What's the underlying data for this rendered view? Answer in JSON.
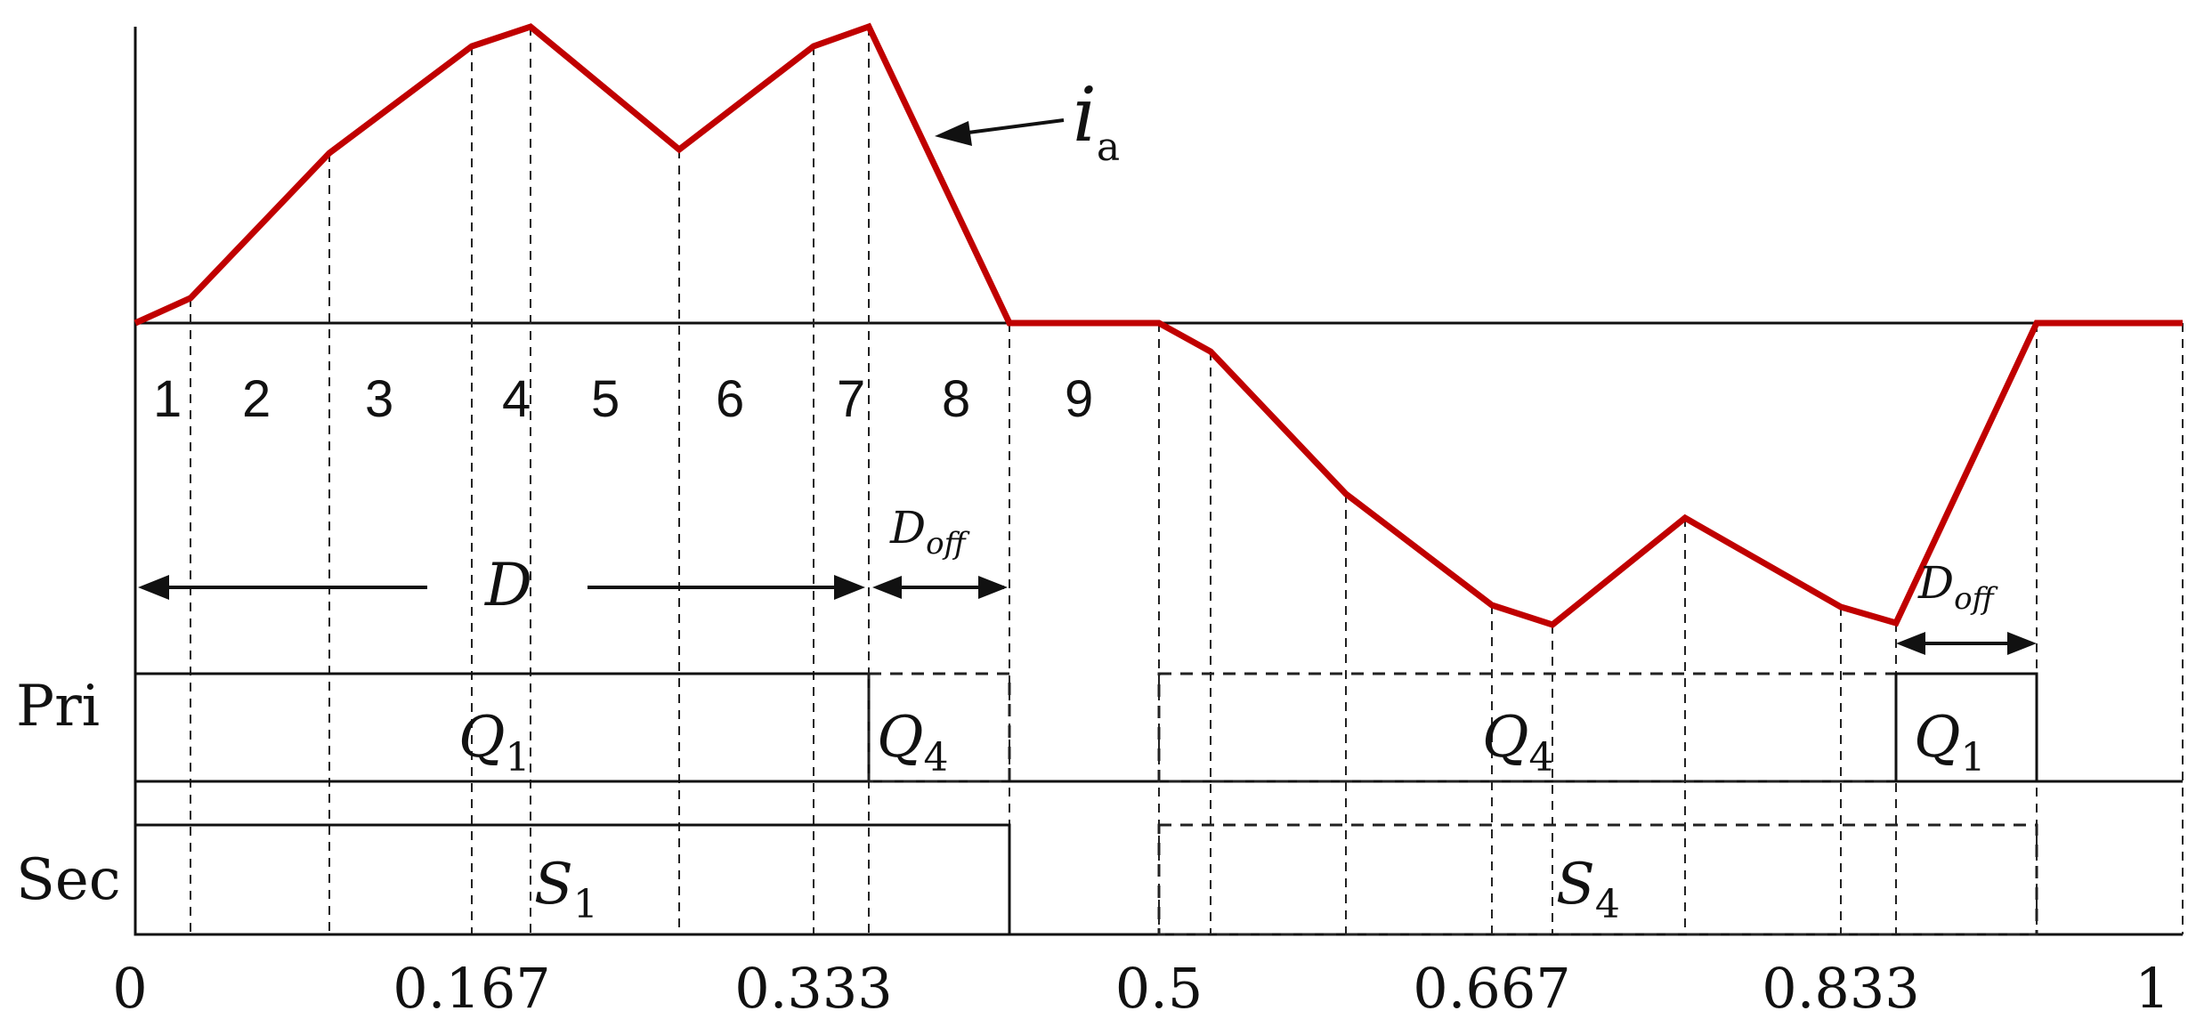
{
  "current_label": {
    "base": "i",
    "sub": "a"
  },
  "interval_numbers": [
    "1",
    "2",
    "3",
    "4",
    "5",
    "6",
    "7",
    "8",
    "9"
  ],
  "duty_label": "D",
  "doff_label": {
    "base": "D",
    "sub": "off"
  },
  "row_labels": {
    "primary": "Pri",
    "secondary": "Sec"
  },
  "switches": {
    "q1": {
      "base": "Q",
      "sub": "1"
    },
    "q4": {
      "base": "Q",
      "sub": "4"
    },
    "s1": {
      "base": "S",
      "sub": "1"
    },
    "s4": {
      "base": "S",
      "sub": "4"
    }
  },
  "x_ticks": [
    "0",
    "0.167",
    "0.333",
    "0.5",
    "0.667",
    "0.833",
    "1"
  ],
  "colors": {
    "current": "#c00000",
    "lines": "#111111"
  }
}
